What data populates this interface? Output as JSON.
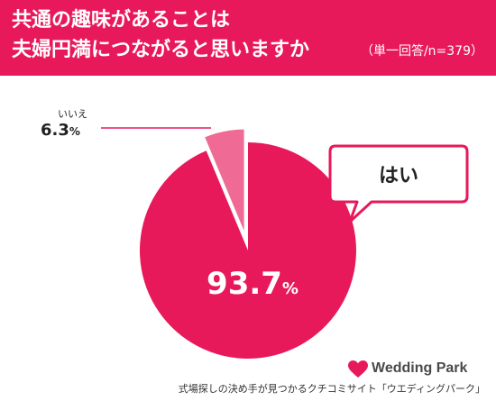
{
  "header": {
    "title_line1": "共通の趣味があることは",
    "title_line2": "夫婦円満につながると思いますか",
    "sample": "（単一回答/n=379）"
  },
  "chart_data": {
    "type": "pie",
    "slices": [
      {
        "label": "はい",
        "value": 93.7,
        "display": "93.7",
        "unit": "%",
        "color": "#e8195a"
      },
      {
        "label": "いいえ",
        "value": 6.3,
        "display": "6.3",
        "unit": "%",
        "color": "#ef6a95"
      }
    ]
  },
  "brand": {
    "name": "Wedding Park",
    "icon": "heart-icon",
    "color": "#e8195a"
  },
  "footer": {
    "text": "式場探しの決め手が見つかるクチコミサイト「ウエディングパーク」"
  }
}
